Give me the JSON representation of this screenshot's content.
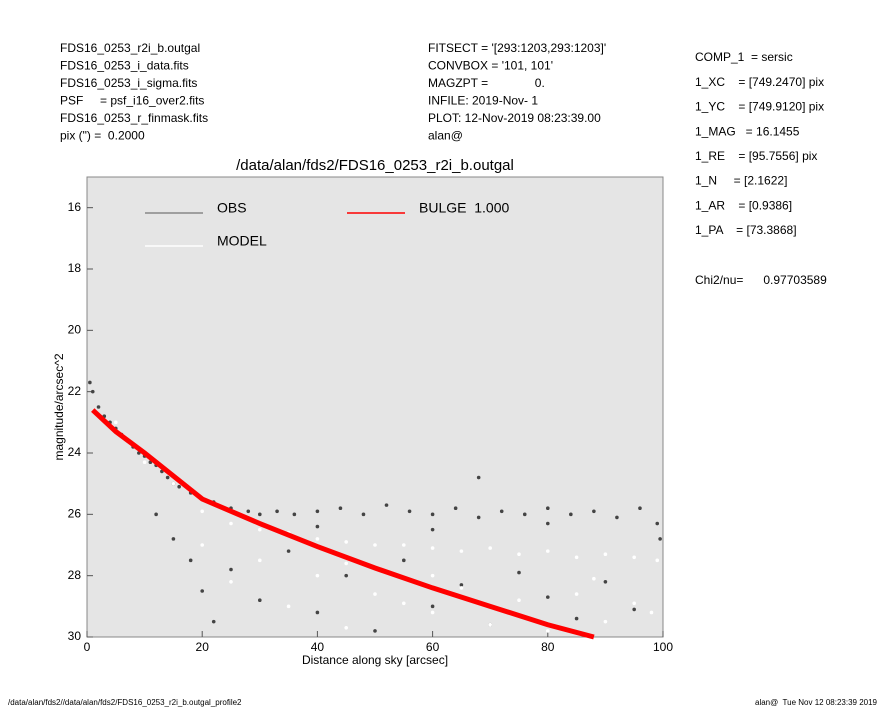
{
  "header": {
    "left": [
      "FDS16_0253_r2i_b.outgal",
      "FDS16_0253_i_data.fits",
      "FDS16_0253_i_sigma.fits",
      "PSF     = psf_i16_over2.fits",
      "FDS16_0253_r_finmask.fits",
      "pix (\") =  0.2000"
    ],
    "center": [
      "FITSECT = '[293:1203,293:1203]'",
      "CONVBOX = '101, 101'",
      "MAGZPT =              0.",
      "INFILE: 2019-Nov- 1",
      "PLOT: 12-Nov-2019 08:23:39.00",
      "alan@"
    ],
    "right": [
      "COMP_1  = sersic",
      "1_XC    = [749.2470] pix",
      "1_YC    = [749.9120] pix",
      "1_MAG   = 16.1455",
      "1_RE    = [95.7556] pix",
      "1_N     = [2.1622]",
      "1_AR    = [0.9386]",
      "1_PA    = [73.3868]"
    ],
    "chi2": "Chi2/nu=      0.97703589"
  },
  "footer": {
    "left": "/data/alan/fds2//data/alan/fds2/FDS16_0253_r2i_b.outgal_profile2",
    "right": "alan@  Tue Nov 12 08:23:39 2019"
  },
  "chart_data": {
    "type": "scatter",
    "title": "/data/alan/fds2/FDS16_0253_r2i_b.outgal",
    "x_label": "Distance along sky [arcsec]",
    "y_label": "magnitude/arcsec^2",
    "xlim": [
      0,
      100
    ],
    "xticks": [
      0,
      20,
      40,
      60,
      80,
      100
    ],
    "ylim": [
      30,
      15
    ],
    "yticks": [
      16,
      18,
      20,
      22,
      24,
      26,
      28,
      30
    ],
    "background": "#e5e5e5",
    "series": [
      {
        "name": "OBS",
        "color": "#444444",
        "legend_color": "#888888",
        "mode": "markers",
        "x": [
          0.5,
          1,
          2,
          3,
          4,
          5,
          6,
          7,
          8,
          9,
          10,
          11,
          12,
          13,
          14,
          15,
          16,
          18,
          20,
          22,
          25,
          28,
          30,
          33,
          36,
          40,
          44,
          48,
          52,
          56,
          60,
          64,
          68,
          72,
          76,
          80,
          84,
          88,
          92,
          96,
          99,
          12,
          15,
          18,
          20,
          22,
          25,
          30,
          35,
          40,
          45,
          50,
          55,
          60,
          65,
          70,
          75,
          80,
          85,
          90,
          95,
          68,
          40,
          60,
          80,
          99.5
        ],
        "values": [
          21.7,
          22.0,
          22.5,
          22.8,
          23.0,
          23.2,
          23.4,
          23.6,
          23.8,
          24.0,
          24.1,
          24.3,
          24.4,
          24.6,
          24.8,
          25.0,
          25.1,
          25.3,
          25.5,
          25.6,
          25.8,
          25.9,
          26.0,
          25.9,
          26.0,
          25.9,
          25.8,
          26.0,
          25.7,
          25.9,
          26.0,
          25.8,
          26.1,
          25.9,
          26.0,
          25.8,
          26.0,
          25.9,
          26.1,
          25.8,
          26.3,
          26.0,
          26.8,
          27.5,
          28.5,
          29.5,
          27.8,
          28.8,
          27.2,
          29.2,
          28.0,
          29.8,
          27.5,
          29.0,
          28.3,
          29.6,
          27.9,
          28.7,
          29.4,
          28.2,
          29.1,
          24.8,
          26.4,
          26.5,
          26.3,
          26.8
        ]
      },
      {
        "name": "MODEL",
        "color": "#ffffff",
        "legend_color": "#ffffff",
        "mode": "markers",
        "x": [
          5,
          10,
          15,
          20,
          25,
          30,
          35,
          40,
          45,
          50,
          55,
          60,
          65,
          70,
          75,
          80,
          85,
          90,
          95,
          99,
          30,
          40,
          50,
          60,
          70,
          80,
          90,
          98,
          35,
          45,
          55,
          65,
          75,
          85,
          95,
          20,
          25,
          45,
          60,
          88
        ],
        "values": [
          23.0,
          24.3,
          25.0,
          25.9,
          26.3,
          26.5,
          26.6,
          26.8,
          26.9,
          27.0,
          27.0,
          27.1,
          27.2,
          27.1,
          27.3,
          27.2,
          27.4,
          27.3,
          27.4,
          27.5,
          27.5,
          28.0,
          28.6,
          29.2,
          29.6,
          29.8,
          29.5,
          29.2,
          29.0,
          29.7,
          28.9,
          28.4,
          28.8,
          28.6,
          28.9,
          27.0,
          28.2,
          27.6,
          28.0,
          28.1
        ]
      },
      {
        "name": "BULGE  1.000",
        "color": "#ff0000",
        "legend_color": "#ff0000",
        "mode": "line",
        "x": [
          1,
          5,
          10,
          20,
          30,
          40,
          50,
          60,
          70,
          80,
          88
        ],
        "values": [
          22.6,
          23.3,
          24.0,
          25.5,
          26.3,
          27.05,
          27.75,
          28.4,
          29.0,
          29.6,
          30.0
        ]
      }
    ]
  }
}
